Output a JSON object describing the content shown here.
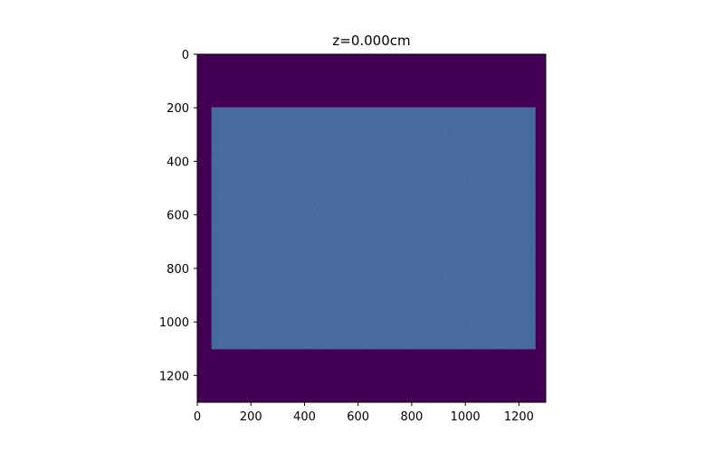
{
  "chart_data": {
    "type": "heatmap",
    "title": "z=0.000cm",
    "xlabel": "",
    "ylabel": "",
    "xlim": [
      0,
      1300
    ],
    "ylim": [
      1300,
      0
    ],
    "x_ticks": [
      0,
      200,
      400,
      600,
      800,
      1000,
      1200
    ],
    "y_ticks": [
      0,
      200,
      400,
      600,
      800,
      1000,
      1200
    ],
    "grid": false,
    "colormap": "viridis",
    "background_value_color": "#440154",
    "field_color": "#3b5a8e",
    "field_edge_color": "#4670a3",
    "illuminated_region": {
      "x_range": [
        55,
        1260
      ],
      "y_range": [
        200,
        1100
      ]
    },
    "axis_color": "#000000"
  }
}
